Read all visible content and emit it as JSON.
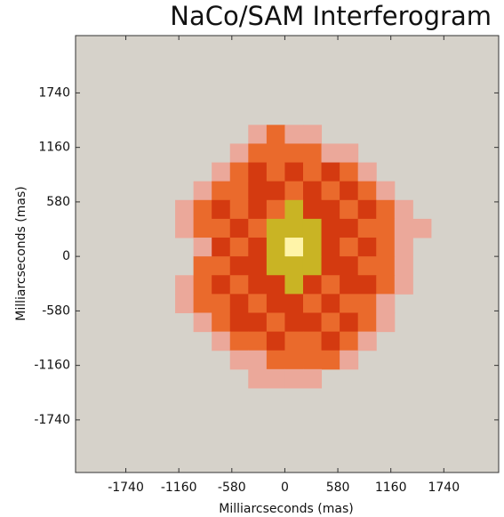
{
  "chart_data": {
    "type": "heatmap",
    "title": "NaCo/SAM Interferogram",
    "xlabel": "Milliarcseconds (mas)",
    "ylabel": "Milliarcseconds (mas)",
    "xlim": [
      -2290,
      2340
    ],
    "ylim": [
      -2300,
      2350
    ],
    "xticks": [
      -1740,
      -1160,
      -580,
      0,
      580,
      1160,
      1740
    ],
    "yticks": [
      -1740,
      -1160,
      -580,
      0,
      580,
      1160,
      1740
    ],
    "cell_size": 200,
    "colors": [
      "#d6d2ca",
      "#eba89a",
      "#ea6a2c",
      "#d43a10",
      "#c9b424",
      "#fff4a8"
    ],
    "x": [
      -1300,
      -1100,
      -900,
      -700,
      -500,
      -300,
      -100,
      100,
      300,
      500,
      700,
      900,
      1100,
      1300,
      1500,
      1700
    ],
    "y": [
      1300,
      1100,
      900,
      700,
      500,
      300,
      100,
      -100,
      -300,
      -500,
      -700,
      -900,
      -1100,
      -1300
    ],
    "z": [
      [
        0,
        0,
        0,
        0,
        0,
        1,
        2,
        1,
        1,
        0,
        0,
        0,
        0,
        0,
        0,
        0
      ],
      [
        0,
        0,
        0,
        0,
        1,
        2,
        2,
        2,
        2,
        1,
        1,
        0,
        0,
        0,
        0,
        0
      ],
      [
        0,
        0,
        0,
        1,
        2,
        3,
        2,
        3,
        2,
        3,
        2,
        1,
        0,
        0,
        0,
        0
      ],
      [
        0,
        0,
        1,
        2,
        2,
        3,
        3,
        2,
        3,
        2,
        3,
        2,
        1,
        0,
        0,
        0
      ],
      [
        0,
        1,
        2,
        3,
        2,
        3,
        2,
        4,
        3,
        3,
        2,
        3,
        2,
        1,
        0,
        0
      ],
      [
        0,
        1,
        2,
        2,
        3,
        2,
        4,
        4,
        4,
        3,
        3,
        2,
        2,
        1,
        1,
        0
      ],
      [
        0,
        0,
        1,
        3,
        2,
        3,
        4,
        5,
        4,
        3,
        2,
        3,
        2,
        1,
        0,
        0
      ],
      [
        0,
        0,
        2,
        2,
        3,
        3,
        4,
        4,
        4,
        3,
        3,
        2,
        2,
        1,
        0,
        0
      ],
      [
        0,
        1,
        2,
        3,
        2,
        3,
        3,
        4,
        3,
        2,
        3,
        3,
        2,
        1,
        0,
        0
      ],
      [
        0,
        1,
        2,
        2,
        3,
        2,
        3,
        3,
        2,
        3,
        2,
        2,
        1,
        0,
        0,
        0
      ],
      [
        0,
        0,
        1,
        2,
        3,
        3,
        2,
        3,
        3,
        2,
        3,
        2,
        1,
        0,
        0,
        0
      ],
      [
        0,
        0,
        0,
        1,
        2,
        2,
        3,
        2,
        2,
        3,
        2,
        1,
        0,
        0,
        0,
        0
      ],
      [
        0,
        0,
        0,
        0,
        1,
        1,
        2,
        2,
        2,
        2,
        1,
        0,
        0,
        0,
        0,
        0
      ],
      [
        0,
        0,
        0,
        0,
        0,
        1,
        1,
        1,
        1,
        0,
        0,
        0,
        0,
        0,
        0,
        0
      ]
    ]
  }
}
